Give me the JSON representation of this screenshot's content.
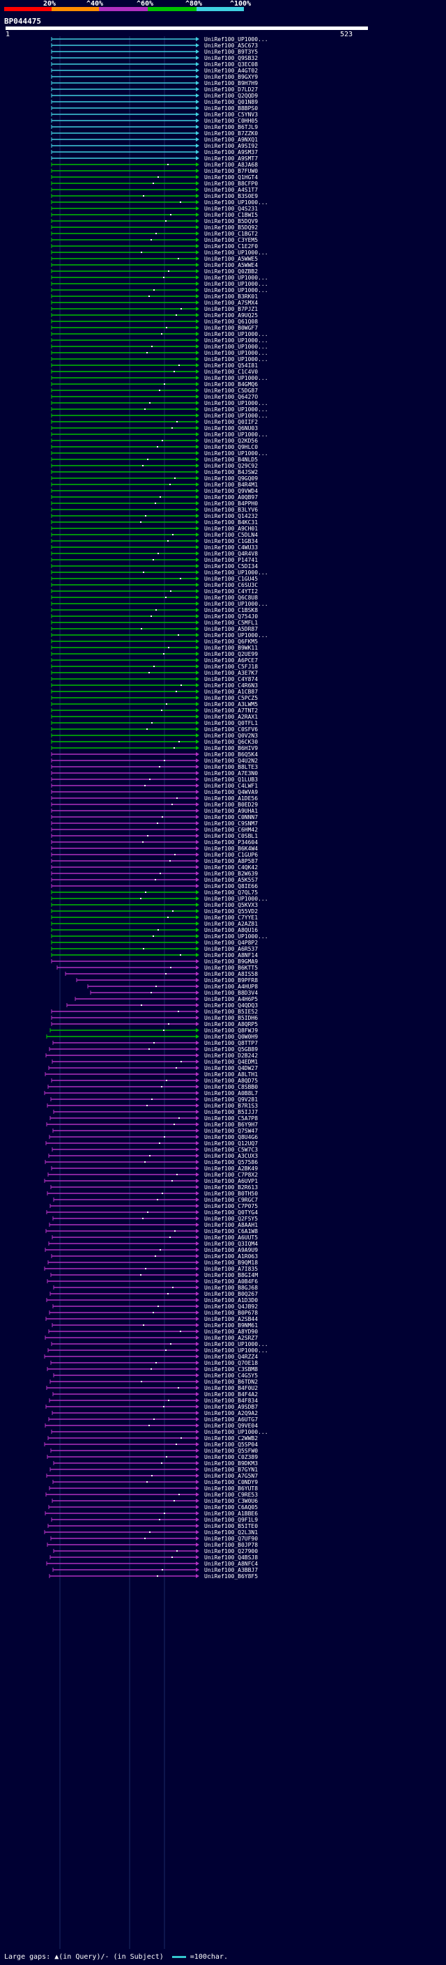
{
  "title": "BP044475",
  "query_start": "1",
  "query_end": "523",
  "legend": {
    "labels": [
      "20%",
      "^40%",
      "^60%",
      "^80%",
      "^100%"
    ],
    "colors": [
      "#ff0000",
      "#ff8c00",
      "#b030c0",
      "#00c000",
      "#40d0e0"
    ]
  },
  "footer": {
    "text": "Large gaps: ▲(in Query)/- (in Subject)",
    "scale_text": "=100char."
  },
  "hits": [
    {
      "label": "UniRef100_UP1000...",
      "color": "#40d0e0"
    },
    {
      "label": "UniRef100_A5C673",
      "color": "#40d0e0"
    },
    {
      "label": "UniRef100_B9T3Y5",
      "color": "#40d0e0"
    },
    {
      "label": "UniRef100_Q9SB32",
      "color": "#40d0e0"
    },
    {
      "label": "UniRef100_Q3EC08",
      "color": "#40d0e0"
    },
    {
      "label": "UniRef100_A4GT02",
      "color": "#40d0e0"
    },
    {
      "label": "UniRef100_B9GXY9",
      "color": "#40d0e0"
    },
    {
      "label": "UniRef100_B9H7H9",
      "color": "#40d0e0"
    },
    {
      "label": "UniRef100_D7LD27",
      "color": "#40d0e0"
    },
    {
      "label": "UniRef100_Q2QQD9",
      "color": "#40d0e0"
    },
    {
      "label": "UniRef100_Q01N89",
      "color": "#40d0e0"
    },
    {
      "label": "UniRef100_B8BPS0",
      "color": "#40d0e0"
    },
    {
      "label": "UniRef100_C5YNV3",
      "color": "#40d0e0"
    },
    {
      "label": "UniRef100_C0HH05",
      "color": "#40d0e0"
    },
    {
      "label": "UniRef100_B6TJL9",
      "color": "#40d0e0"
    },
    {
      "label": "UniRef100_B7ZZK0",
      "color": "#40d0e0"
    },
    {
      "label": "UniRef100_A9NXQ1",
      "color": "#40d0e0"
    },
    {
      "label": "UniRef100_A9SI92",
      "color": "#40d0e0"
    },
    {
      "label": "UniRef100_A9SM37",
      "color": "#40d0e0"
    },
    {
      "label": "UniRef100_A9SMT7",
      "color": "#40d0e0"
    },
    {
      "label": "UniRef100_A8JA68",
      "color": "#00c000"
    },
    {
      "label": "UniRef100_B7FUW0",
      "color": "#00c000"
    },
    {
      "label": "UniRef100_Q1HGT4",
      "color": "#00c000"
    },
    {
      "label": "UniRef100_B8CFP0",
      "color": "#00c000"
    },
    {
      "label": "UniRef100_A4S1T7",
      "color": "#00c000"
    },
    {
      "label": "UniRef100_B3S0E9",
      "color": "#00c000"
    },
    {
      "label": "UniRef100_UP1000...",
      "color": "#00c000"
    },
    {
      "label": "UniRef100_Q4S231",
      "color": "#00c000"
    },
    {
      "label": "UniRef100_C1BWI5",
      "color": "#00c000"
    },
    {
      "label": "UniRef100_B5DQV9",
      "color": "#00c000"
    },
    {
      "label": "UniRef100_B5DQ92",
      "color": "#00c000"
    },
    {
      "label": "UniRef100_C1BGT2",
      "color": "#00c000"
    },
    {
      "label": "UniRef100_C3YEM5",
      "color": "#00c000"
    },
    {
      "label": "UniRef100_C1E2F0",
      "color": "#00c000"
    },
    {
      "label": "UniRef100_UP1000...",
      "color": "#00c000"
    },
    {
      "label": "UniRef100_A5WWE5",
      "color": "#00c000"
    },
    {
      "label": "UniRef100_A5WWE4",
      "color": "#00c000"
    },
    {
      "label": "UniRef100_Q0ZBB2",
      "color": "#00c000"
    },
    {
      "label": "UniRef100_UP1000...",
      "color": "#00c000"
    },
    {
      "label": "UniRef100_UP1000...",
      "color": "#00c000"
    },
    {
      "label": "UniRef100_UP1000...",
      "color": "#00c000"
    },
    {
      "label": "UniRef100_B3RK01",
      "color": "#00c000"
    },
    {
      "label": "UniRef100_A7SMX4",
      "color": "#00c000"
    },
    {
      "label": "UniRef100_B7PJZ1",
      "color": "#00c000"
    },
    {
      "label": "UniRef100_A9UQ25",
      "color": "#00c000"
    },
    {
      "label": "UniRef100_Q61Q08",
      "color": "#00c000"
    },
    {
      "label": "UniRef100_B0WGF7",
      "color": "#00c000"
    },
    {
      "label": "UniRef100_UP1000...",
      "color": "#00c000"
    },
    {
      "label": "UniRef100_UP1000...",
      "color": "#00c000"
    },
    {
      "label": "UniRef100_UP1000...",
      "color": "#00c000"
    },
    {
      "label": "UniRef100_UP1000...",
      "color": "#00c000"
    },
    {
      "label": "UniRef100_UP1000...",
      "color": "#00c000"
    },
    {
      "label": "UniRef100_Q54I81",
      "color": "#00c000"
    },
    {
      "label": "UniRef100_C1C4V0",
      "color": "#00c000"
    },
    {
      "label": "UniRef100_UP1000...",
      "color": "#00c000"
    },
    {
      "label": "UniRef100_B4GMQ6",
      "color": "#00c000"
    },
    {
      "label": "UniRef100_C5DG87",
      "color": "#00c000"
    },
    {
      "label": "UniRef100_Q6427O",
      "color": "#00c000"
    },
    {
      "label": "UniRef100_UP1000...",
      "color": "#00c000"
    },
    {
      "label": "UniRef100_UP1000...",
      "color": "#00c000"
    },
    {
      "label": "UniRef100_UP1000...",
      "color": "#00c000"
    },
    {
      "label": "UniRef100_Q0IIF2",
      "color": "#00c000"
    },
    {
      "label": "UniRef100_Q6NU03",
      "color": "#00c000"
    },
    {
      "label": "UniRef100_UP1000...",
      "color": "#00c000"
    },
    {
      "label": "UniRef100_Q2KD56",
      "color": "#00c000"
    },
    {
      "label": "UniRef100_Q9HLC0",
      "color": "#00c000"
    },
    {
      "label": "UniRef100_UP1000...",
      "color": "#00c000"
    },
    {
      "label": "UniRef100_B4NLD5",
      "color": "#00c000"
    },
    {
      "label": "UniRef100_Q29C92",
      "color": "#00c000"
    },
    {
      "label": "UniRef100_B4JSW2",
      "color": "#00c000"
    },
    {
      "label": "UniRef100_Q9GQ09",
      "color": "#00c000"
    },
    {
      "label": "UniRef100_B4R4M1",
      "color": "#00c000"
    },
    {
      "label": "UniRef100_Q9VWD4",
      "color": "#00c000"
    },
    {
      "label": "UniRef100_A0QB97",
      "color": "#00c000"
    },
    {
      "label": "UniRef100_B4PPH0",
      "color": "#00c000"
    },
    {
      "label": "UniRef100_B3LYV6",
      "color": "#00c000"
    },
    {
      "label": "UniRef100_Q14232",
      "color": "#00c000"
    },
    {
      "label": "UniRef100_B4KC31",
      "color": "#00c000"
    },
    {
      "label": "UniRef100_A9CH01",
      "color": "#00c000"
    },
    {
      "label": "UniRef100_C5DLN4",
      "color": "#00c000"
    },
    {
      "label": "UniRef100_C1GB34",
      "color": "#00c000"
    },
    {
      "label": "UniRef100_C4WU33",
      "color": "#00c000"
    },
    {
      "label": "UniRef100_Q4R4V8",
      "color": "#00c000"
    },
    {
      "label": "UniRef100_P14741",
      "color": "#00c000"
    },
    {
      "label": "UniRef100_C5DI34",
      "color": "#00c000"
    },
    {
      "label": "UniRef100_UP1000...",
      "color": "#00c000"
    },
    {
      "label": "UniRef100_C1GU45",
      "color": "#00c000"
    },
    {
      "label": "UniRef100_C6SU3C",
      "color": "#00c000"
    },
    {
      "label": "UniRef100_C4YTI2",
      "color": "#00c000"
    },
    {
      "label": "UniRef100_Q6C8U8",
      "color": "#00c000"
    },
    {
      "label": "UniRef100_UP1000...",
      "color": "#00c000"
    },
    {
      "label": "UniRef100_C1BSK8",
      "color": "#00c000"
    },
    {
      "label": "UniRef100_Q754J0",
      "color": "#00c000"
    },
    {
      "label": "UniRef100_C5MFL1",
      "color": "#00c000"
    },
    {
      "label": "UniRef100_A5DR87",
      "color": "#00c000"
    },
    {
      "label": "UniRef100_UP1000...",
      "color": "#00c000"
    },
    {
      "label": "UniRef100_Q6FKM5",
      "color": "#00c000"
    },
    {
      "label": "UniRef100_B9WK11",
      "color": "#00c000"
    },
    {
      "label": "UniRef100_Q2UE99",
      "color": "#00c000"
    },
    {
      "label": "UniRef100_A6PCE7",
      "color": "#00c000"
    },
    {
      "label": "UniRef100_C5FJ18",
      "color": "#00c000"
    },
    {
      "label": "UniRef100_A3E7K7",
      "color": "#00c000"
    },
    {
      "label": "UniRef100_C4Y874",
      "color": "#00c000"
    },
    {
      "label": "UniRef100_C4R6N3",
      "color": "#00c000"
    },
    {
      "label": "UniRef100_A1CB87",
      "color": "#00c000"
    },
    {
      "label": "UniRef100_C5PCZ5",
      "color": "#00c000"
    },
    {
      "label": "UniRef100_A3LWM5",
      "color": "#00c000"
    },
    {
      "label": "UniRef100_A7TNT2",
      "color": "#00c000"
    },
    {
      "label": "UniRef100_A2RAX1",
      "color": "#00c000"
    },
    {
      "label": "UniRef100_Q0TFL1",
      "color": "#00c000"
    },
    {
      "label": "UniRef100_C0SFV6",
      "color": "#00c000"
    },
    {
      "label": "UniRef100_Q0V2N3",
      "color": "#00c000"
    },
    {
      "label": "UniRef100_Q6CK30",
      "color": "#00c000"
    },
    {
      "label": "UniRef100_B6HIV9",
      "color": "#00c000"
    },
    {
      "label": "UniRef100_B6Q5K4",
      "color": "#b030c0"
    },
    {
      "label": "UniRef100_Q4U2N2",
      "color": "#b030c0"
    },
    {
      "label": "UniRef100_B8LTE3",
      "color": "#b030c0"
    },
    {
      "label": "UniRef100_A7E3N0",
      "color": "#b030c0"
    },
    {
      "label": "UniRef100_Q1LUB3",
      "color": "#b030c0"
    },
    {
      "label": "UniRef100_C4LWF1",
      "color": "#b030c0"
    },
    {
      "label": "UniRef100_Q4WVA9",
      "color": "#b030c0"
    },
    {
      "label": "UniRef100_A1DE56",
      "color": "#b030c0"
    },
    {
      "label": "UniRef100_B0ED29",
      "color": "#b030c0"
    },
    {
      "label": "UniRef100_A9UHA1",
      "color": "#b030c0"
    },
    {
      "label": "UniRef100_C0NNN7",
      "color": "#b030c0"
    },
    {
      "label": "UniRef100_C9SNM7",
      "color": "#b030c0"
    },
    {
      "label": "UniRef100_C6HM42",
      "color": "#b030c0"
    },
    {
      "label": "UniRef100_C0SBL1",
      "color": "#b030c0"
    },
    {
      "label": "UniRef100_P34604",
      "color": "#b030c0"
    },
    {
      "label": "UniRef100_B6K4W4",
      "color": "#b030c0"
    },
    {
      "label": "UniRef100_C1GUP6",
      "color": "#b030c0"
    },
    {
      "label": "UniRef100_A8P587",
      "color": "#b030c0"
    },
    {
      "label": "UniRef100_C4QK42",
      "color": "#b030c0"
    },
    {
      "label": "UniRef100_B2W639",
      "color": "#b030c0"
    },
    {
      "label": "UniRef100_A5K5S7",
      "color": "#b030c0"
    },
    {
      "label": "UniRef100_Q8IE66",
      "color": "#b030c0"
    },
    {
      "label": "UniRef100_Q7QL75",
      "color": "#00c000"
    },
    {
      "label": "UniRef100_UP1000...",
      "color": "#00c000"
    },
    {
      "label": "UniRef100_Q5KVX3",
      "color": "#00c000"
    },
    {
      "label": "UniRef100_Q55VD2",
      "color": "#00c000"
    },
    {
      "label": "UniRef100_C7YYE1",
      "color": "#00c000"
    },
    {
      "label": "UniRef100_A2AZ81",
      "color": "#00c000"
    },
    {
      "label": "UniRef100_A8QU16",
      "color": "#00c000"
    },
    {
      "label": "UniRef100_UP1000...",
      "color": "#00c000"
    },
    {
      "label": "UniRef100_Q4P8P2",
      "color": "#00c000"
    },
    {
      "label": "UniRef100_A6R537",
      "color": "#00c000"
    },
    {
      "label": "UniRef100_A8NF14",
      "color": "#00c000"
    },
    {
      "label": "UniRef100_B9GMA9",
      "color": "#b030c0"
    },
    {
      "label": "UniRef100_B6KTT5",
      "color": "#b030c0"
    },
    {
      "label": "UniRef100_A8IS58",
      "color": "#b030c0"
    },
    {
      "label": "UniRef100_B9PFR8",
      "color": "#b030c0"
    },
    {
      "label": "UniRef100_A4HUP8",
      "color": "#b030c0"
    },
    {
      "label": "UniRef100_B8D3V4",
      "color": "#b030c0"
    },
    {
      "label": "UniRef100_A4H6P5",
      "color": "#b030c0"
    },
    {
      "label": "UniRef100_Q4QDQ3",
      "color": "#b030c0"
    },
    {
      "label": "UniRef100_B5IE52",
      "color": "#b030c0"
    },
    {
      "label": "UniRef100_B5IDH6",
      "color": "#b030c0"
    },
    {
      "label": "UniRef100_A8QRP5",
      "color": "#b030c0"
    },
    {
      "label": "UniRef100_Q8FWJ9",
      "color": "#00c000"
    },
    {
      "label": "UniRef100_Q0W0H9",
      "color": "#00c000"
    },
    {
      "label": "UniRef100_Q8TTP7",
      "color": "#b030c0"
    },
    {
      "label": "UniRef100_Q5GB89",
      "color": "#b030c0"
    },
    {
      "label": "UniRef100_D2B242",
      "color": "#b030c0"
    },
    {
      "label": "UniRef100_Q4EDM1",
      "color": "#b030c0"
    },
    {
      "label": "UniRef100_Q4DW27",
      "color": "#b030c0"
    },
    {
      "label": "UniRef100_A8LTH1",
      "color": "#b030c0"
    },
    {
      "label": "UniRef100_A8QD75",
      "color": "#b030c0"
    },
    {
      "label": "UniRef100_C8SBB0",
      "color": "#b030c0"
    },
    {
      "label": "UniRef100_A0B8L7",
      "color": "#b030c0"
    },
    {
      "label": "UniRef100_Q9V281",
      "color": "#b030c0"
    },
    {
      "label": "UniRef100_B7R1S3",
      "color": "#b030c0"
    },
    {
      "label": "UniRef100_B5IJJ7",
      "color": "#b030c0"
    },
    {
      "label": "UniRef100_C5A7P8",
      "color": "#b030c0"
    },
    {
      "label": "UniRef100_B6Y9H7",
      "color": "#b030c0"
    },
    {
      "label": "UniRef100_Q7SW47",
      "color": "#b030c0"
    },
    {
      "label": "UniRef100_Q8U4G6",
      "color": "#b030c0"
    },
    {
      "label": "UniRef100_Q12UQ7",
      "color": "#b030c0"
    },
    {
      "label": "UniRef100_C5W7C3",
      "color": "#b030c0"
    },
    {
      "label": "UniRef100_A3CUX3",
      "color": "#b030c0"
    },
    {
      "label": "UniRef100_Q57586",
      "color": "#b030c0"
    },
    {
      "label": "UniRef100_A2BK49",
      "color": "#b030c0"
    },
    {
      "label": "UniRef100_C7P8X2",
      "color": "#b030c0"
    },
    {
      "label": "UniRef100_A6UVP1",
      "color": "#b030c0"
    },
    {
      "label": "UniRef100_B2R613",
      "color": "#b030c0"
    },
    {
      "label": "UniRef100_B0TH50",
      "color": "#b030c0"
    },
    {
      "label": "UniRef100_C9RGC7",
      "color": "#b030c0"
    },
    {
      "label": "UniRef100_C7P075",
      "color": "#b030c0"
    },
    {
      "label": "UniRef100_Q0TYG4",
      "color": "#b030c0"
    },
    {
      "label": "UniRef100_Q2FSY5",
      "color": "#b030c0"
    },
    {
      "label": "UniRef100_A8AAH1",
      "color": "#b030c0"
    },
    {
      "label": "UniRef100_C6A1W8",
      "color": "#b030c0"
    },
    {
      "label": "UniRef100_A6UUT5",
      "color": "#b030c0"
    },
    {
      "label": "UniRef100_Q3IQM4",
      "color": "#b030c0"
    },
    {
      "label": "UniRef100_A9A9U9",
      "color": "#b030c0"
    },
    {
      "label": "UniRef100_A1R063",
      "color": "#b030c0"
    },
    {
      "label": "UniRef100_B9QM18",
      "color": "#b030c0"
    },
    {
      "label": "UniRef100_A7I835",
      "color": "#b030c0"
    },
    {
      "label": "UniRef100_B8GI4M",
      "color": "#b030c0"
    },
    {
      "label": "UniRef100_A0B4F6",
      "color": "#b030c0"
    },
    {
      "label": "UniRef100_B8GJ68",
      "color": "#b030c0"
    },
    {
      "label": "UniRef100_B0Q267",
      "color": "#b030c0"
    },
    {
      "label": "UniRef100_A1D3D0",
      "color": "#b030c0"
    },
    {
      "label": "UniRef100_Q4JB92",
      "color": "#b030c0"
    },
    {
      "label": "UniRef100_B0P678",
      "color": "#b030c0"
    },
    {
      "label": "UniRef100_A2SB44",
      "color": "#b030c0"
    },
    {
      "label": "UniRef100_B9NM61",
      "color": "#b030c0"
    },
    {
      "label": "UniRef100_A8YD90",
      "color": "#b030c0"
    },
    {
      "label": "UniRef100_A2SRZ7",
      "color": "#b030c0"
    },
    {
      "label": "UniRef100_UP1000...",
      "color": "#b030c0"
    },
    {
      "label": "UniRef100_UP1000...",
      "color": "#b030c0"
    },
    {
      "label": "UniRef100_Q4RZZ4",
      "color": "#b030c0"
    },
    {
      "label": "UniRef100_Q7OE18",
      "color": "#b030c0"
    },
    {
      "label": "UniRef100_C3SBM8",
      "color": "#b030c0"
    },
    {
      "label": "UniRef100_C4G5Y5",
      "color": "#b030c0"
    },
    {
      "label": "UniRef100_B6TDN2",
      "color": "#b030c0"
    },
    {
      "label": "UniRef100_B4F0U2",
      "color": "#b030c0"
    },
    {
      "label": "UniRef100_B4F4A2",
      "color": "#b030c0"
    },
    {
      "label": "UniRef100_B4F834",
      "color": "#b030c0"
    },
    {
      "label": "UniRef100_A9SDB7",
      "color": "#b030c0"
    },
    {
      "label": "UniRef100_A2Q9A2",
      "color": "#b030c0"
    },
    {
      "label": "UniRef100_A6UTG7",
      "color": "#b030c0"
    },
    {
      "label": "UniRef100_Q9VE04",
      "color": "#b030c0"
    },
    {
      "label": "UniRef100_UP1000...",
      "color": "#b030c0"
    },
    {
      "label": "UniRef100_C2WWB2",
      "color": "#b030c0"
    },
    {
      "label": "UniRef100_Q5SP04",
      "color": "#b030c0"
    },
    {
      "label": "UniRef100_Q5SFW0",
      "color": "#b030c0"
    },
    {
      "label": "UniRef100_C0Z389",
      "color": "#b030c0"
    },
    {
      "label": "UniRef100_B9DKM3",
      "color": "#b030c0"
    },
    {
      "label": "UniRef100_B7GYN1",
      "color": "#b030c0"
    },
    {
      "label": "UniRef100_A7G5N7",
      "color": "#b030c0"
    },
    {
      "label": "UniRef100_C0NDY9",
      "color": "#b030c0"
    },
    {
      "label": "UniRef100_B6YUT8",
      "color": "#b030c0"
    },
    {
      "label": "UniRef100_C9RE53",
      "color": "#b030c0"
    },
    {
      "label": "UniRef100_C3W0U6",
      "color": "#b030c0"
    },
    {
      "label": "UniRef100_C6AQ05",
      "color": "#b030c0"
    },
    {
      "label": "UniRef100_A1BBE6",
      "color": "#b030c0"
    },
    {
      "label": "UniRef100_Q9F1L9",
      "color": "#b030c0"
    },
    {
      "label": "UniRef100_B5ITE0",
      "color": "#b030c0"
    },
    {
      "label": "UniRef100_Q2L3N1",
      "color": "#b030c0"
    },
    {
      "label": "UniRef100_Q7UF90",
      "color": "#b030c0"
    },
    {
      "label": "UniRef100_B0JP78",
      "color": "#b030c0"
    },
    {
      "label": "UniRef100_Q27900",
      "color": "#b030c0"
    },
    {
      "label": "UniRef100_Q4BSJ8",
      "color": "#b030c0"
    },
    {
      "label": "UniRef100_A8NFC4",
      "color": "#b030c0"
    },
    {
      "label": "UniRef100_A3BBJ7",
      "color": "#b030c0"
    },
    {
      "label": "UniRef100_B6Y8F5",
      "color": "#b030c0"
    }
  ]
}
